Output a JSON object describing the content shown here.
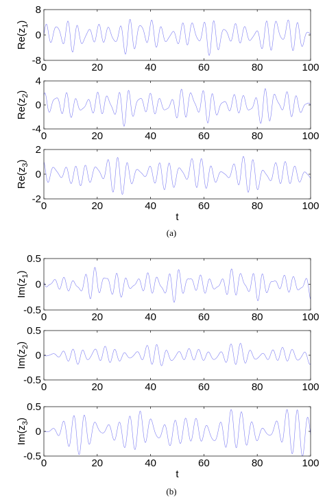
{
  "chart_data": [
    {
      "type": "line",
      "panel": "a",
      "ylabel": "Re(z",
      "ysub": "1",
      "ylabel_close": ")",
      "ylim": [
        -8,
        8
      ],
      "yticks": [
        "8",
        "0",
        "-8"
      ],
      "xlim": [
        0,
        100
      ],
      "xticks": [
        "0",
        "20",
        "40",
        "60",
        "80",
        "100"
      ],
      "xlabel": "",
      "color": "#7b7bf2",
      "signal": {
        "amp": [
          4,
          5
        ],
        "freq": [
          1.6,
          2.2
        ],
        "start": 0.7
      }
    },
    {
      "type": "line",
      "panel": "a",
      "ylabel": "Re(z",
      "ysub": "2",
      "ylabel_close": ")",
      "ylim": [
        -4,
        4
      ],
      "yticks": [
        "4",
        "0",
        "-4"
      ],
      "xlim": [
        0,
        100
      ],
      "xticks": [
        "0",
        "20",
        "40",
        "60",
        "80",
        "100"
      ],
      "xlabel": "",
      "color": "#7b7bf2",
      "signal": {
        "amp": [
          2,
          2.8
        ],
        "freq": [
          1.6,
          2.2
        ],
        "start": 0.7
      }
    },
    {
      "type": "line",
      "panel": "a",
      "ylabel": "Re(z",
      "ysub": "3",
      "ylabel_close": ")",
      "ylim": [
        -2,
        2
      ],
      "yticks": [
        "2",
        "0",
        "-2"
      ],
      "xlim": [
        0,
        100
      ],
      "xticks": [
        "0",
        "20",
        "40",
        "60",
        "80",
        "100"
      ],
      "xlabel": "t",
      "color": "#7b7bf2",
      "signal": {
        "amp": [
          1,
          1.5
        ],
        "freq": [
          1.6,
          2.0
        ],
        "start": 0.8
      }
    },
    {
      "type": "line",
      "panel": "b",
      "ylabel": "Im(z",
      "ysub": "1",
      "ylabel_close": ")",
      "ylim": [
        -0.5,
        0.5
      ],
      "yticks": [
        "0.5",
        "0",
        "-0.5"
      ],
      "xlim": [
        0,
        100
      ],
      "xticks": [
        "0",
        "20",
        "40",
        "60",
        "80",
        "100"
      ],
      "xlabel": "",
      "color": "#7b7bf2",
      "signal": {
        "amp": [
          0.2,
          0.3
        ],
        "freq": [
          1.6,
          2.2
        ],
        "start": 0.6
      }
    },
    {
      "type": "line",
      "panel": "b",
      "ylabel": "Im(z",
      "ysub": "2",
      "ylabel_close": ")",
      "ylim": [
        -0.5,
        0.5
      ],
      "yticks": [
        "0.5",
        "0",
        "-0.5"
      ],
      "xlim": [
        0,
        100
      ],
      "xticks": [
        "0",
        "20",
        "40",
        "60",
        "80",
        "100"
      ],
      "xlabel": "",
      "color": "#7b7bf2",
      "signal": {
        "amp": [
          0.15,
          0.2
        ],
        "freq": [
          1.6,
          2.0
        ],
        "start": 0.3
      }
    },
    {
      "type": "line",
      "panel": "b",
      "ylabel": "Im(z",
      "ysub": "3",
      "ylabel_close": ")",
      "ylim": [
        -0.5,
        0.5
      ],
      "yticks": [
        "0.5",
        "0",
        "-0.5"
      ],
      "xlim": [
        0,
        100
      ],
      "xticks": [
        "0",
        "20",
        "40",
        "60",
        "80",
        "100"
      ],
      "xlabel": "t",
      "color": "#7b7bf2",
      "signal": {
        "amp": [
          0.3,
          0.45
        ],
        "freq": [
          1.5,
          1.8
        ],
        "start": 0.1
      }
    }
  ],
  "captions": {
    "a": "(a)",
    "b": "(b)"
  }
}
